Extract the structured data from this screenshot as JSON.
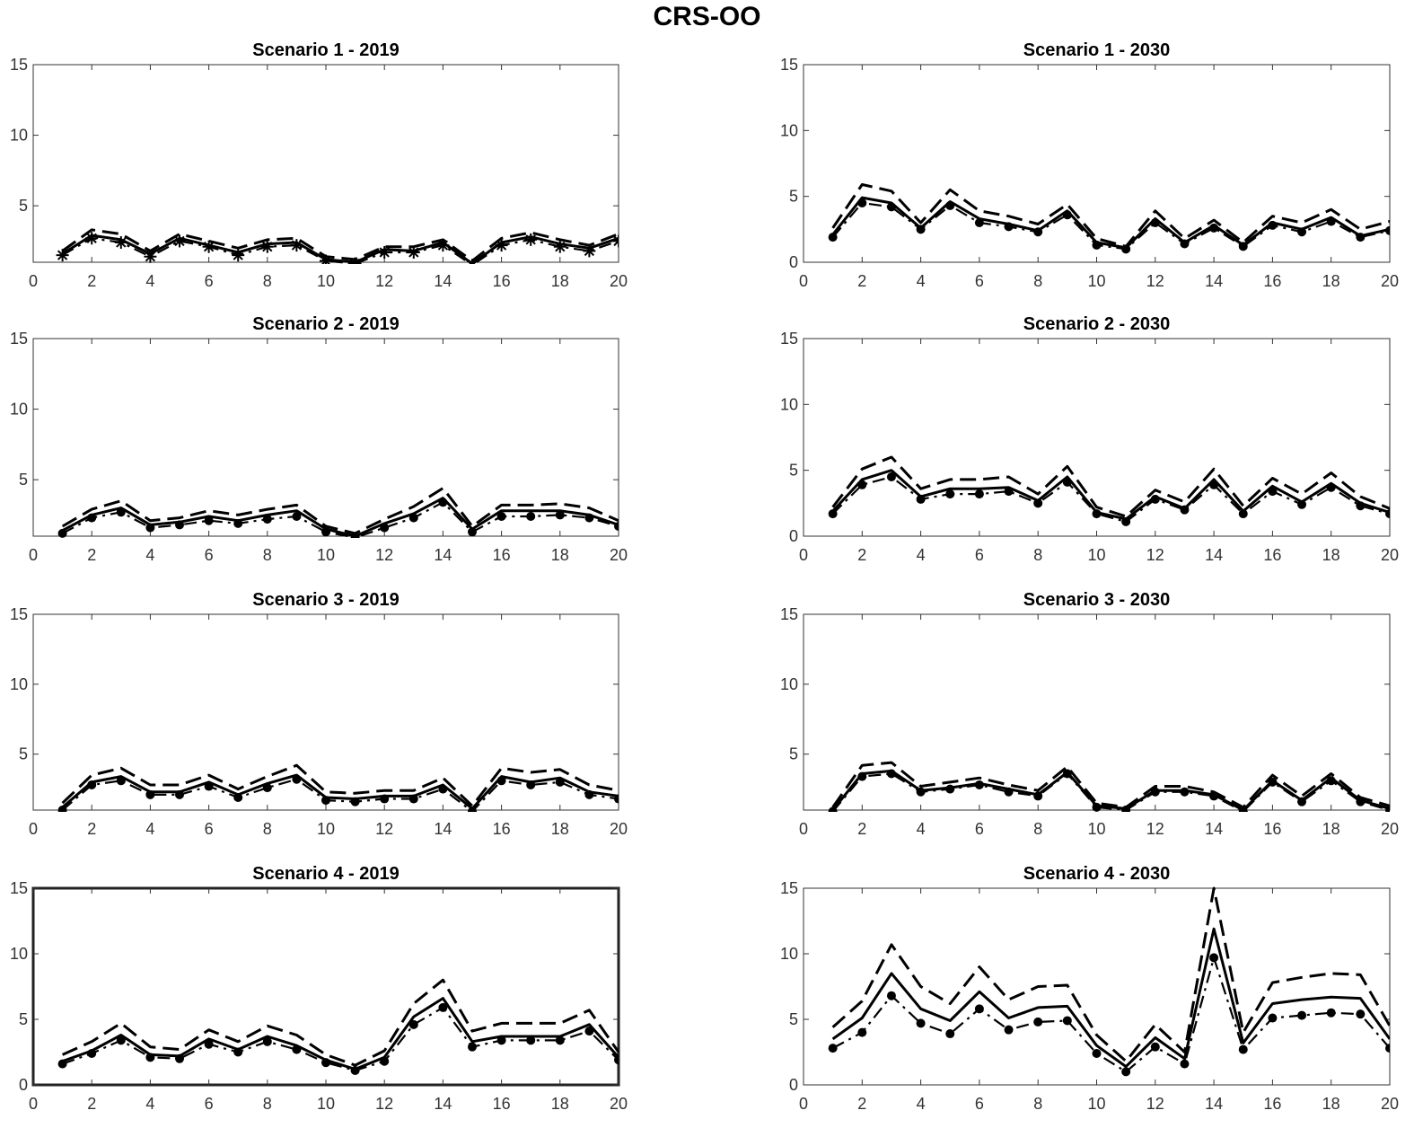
{
  "figure_title": "CRS-OO",
  "chart_data": [
    {
      "type": "line",
      "title": "Scenario 1 - 2019",
      "x": [
        1,
        2,
        3,
        4,
        5,
        6,
        7,
        8,
        9,
        10,
        11,
        12,
        13,
        14,
        15,
        16,
        17,
        18,
        19,
        20
      ],
      "xlim": [
        0,
        20
      ],
      "ylim": [
        1,
        15
      ],
      "xticks": [
        0,
        2,
        4,
        6,
        8,
        10,
        12,
        14,
        16,
        18,
        20
      ],
      "yticks": [
        5,
        10,
        15
      ],
      "xlabel": "",
      "ylabel": "",
      "series": [
        {
          "name": "upper",
          "style": "dashed",
          "marker": "none",
          "values": [
            1.8,
            3.3,
            3.0,
            1.8,
            3.0,
            2.5,
            2.0,
            2.6,
            2.7,
            1.4,
            1.2,
            2.1,
            2.1,
            2.6,
            1.1,
            2.7,
            3.1,
            2.6,
            2.2,
            3.0
          ]
        },
        {
          "name": "mid",
          "style": "solid",
          "marker": "none",
          "values": [
            1.6,
            2.9,
            2.6,
            1.6,
            2.7,
            2.2,
            1.7,
            2.3,
            2.4,
            1.2,
            1.0,
            1.9,
            1.8,
            2.4,
            0.9,
            2.4,
            2.8,
            2.3,
            2.0,
            2.7
          ]
        },
        {
          "name": "lower",
          "style": "dashdot",
          "marker": "star",
          "values": [
            1.5,
            2.7,
            2.4,
            1.4,
            2.5,
            2.1,
            1.5,
            2.1,
            2.2,
            1.1,
            0.9,
            1.7,
            1.7,
            2.2,
            0.8,
            2.2,
            2.6,
            2.1,
            1.8,
            2.5
          ]
        }
      ]
    },
    {
      "type": "line",
      "title": "Scenario 1 - 2030",
      "x": [
        1,
        2,
        3,
        4,
        5,
        6,
        7,
        8,
        9,
        10,
        11,
        12,
        13,
        14,
        15,
        16,
        17,
        18,
        19,
        20
      ],
      "xlim": [
        0,
        20
      ],
      "ylim": [
        0,
        15
      ],
      "xticks": [
        0,
        2,
        4,
        6,
        8,
        10,
        12,
        14,
        16,
        18,
        20
      ],
      "yticks": [
        0,
        5,
        10,
        15
      ],
      "xlabel": "",
      "ylabel": "",
      "series": [
        {
          "name": "upper",
          "style": "dashed",
          "marker": "none",
          "values": [
            2.6,
            5.9,
            5.4,
            3.0,
            5.5,
            3.9,
            3.5,
            2.9,
            4.4,
            1.8,
            1.2,
            3.9,
            1.8,
            3.2,
            1.5,
            3.5,
            3.0,
            4.0,
            2.5,
            3.1
          ]
        },
        {
          "name": "mid",
          "style": "solid",
          "marker": "none",
          "values": [
            2.1,
            4.9,
            4.5,
            2.6,
            4.6,
            3.3,
            2.9,
            2.4,
            3.9,
            1.5,
            1.1,
            3.3,
            1.5,
            2.8,
            1.3,
            3.0,
            2.5,
            3.4,
            2.0,
            2.5
          ]
        },
        {
          "name": "lower",
          "style": "dashdot",
          "marker": "dot",
          "values": [
            1.9,
            4.5,
            4.2,
            2.5,
            4.3,
            3.0,
            2.7,
            2.3,
            3.6,
            1.3,
            1.0,
            3.0,
            1.4,
            2.6,
            1.2,
            2.8,
            2.3,
            3.1,
            1.9,
            2.4
          ]
        }
      ]
    },
    {
      "type": "line",
      "title": "Scenario 2 - 2019",
      "x": [
        1,
        2,
        3,
        4,
        5,
        6,
        7,
        8,
        9,
        10,
        11,
        12,
        13,
        14,
        15,
        16,
        17,
        18,
        19,
        20
      ],
      "xlim": [
        0,
        20
      ],
      "ylim": [
        1,
        15
      ],
      "xticks": [
        0,
        2,
        4,
        6,
        8,
        10,
        12,
        14,
        16,
        18,
        20
      ],
      "yticks": [
        5,
        10,
        15
      ],
      "xlabel": "",
      "ylabel": "",
      "series": [
        {
          "name": "upper",
          "style": "dashed",
          "marker": "none",
          "values": [
            1.7,
            2.9,
            3.5,
            2.1,
            2.3,
            2.8,
            2.5,
            2.9,
            3.2,
            1.7,
            1.2,
            2.2,
            3.1,
            4.4,
            1.7,
            3.2,
            3.2,
            3.3,
            3.0,
            2.1
          ]
        },
        {
          "name": "mid",
          "style": "solid",
          "marker": "none",
          "values": [
            1.4,
            2.5,
            3.0,
            1.8,
            2.0,
            2.4,
            2.1,
            2.5,
            2.8,
            1.5,
            1.0,
            1.9,
            2.6,
            3.7,
            1.5,
            2.8,
            2.8,
            2.8,
            2.5,
            1.8
          ]
        },
        {
          "name": "lower",
          "style": "dashdot",
          "marker": "dot",
          "values": [
            1.2,
            2.3,
            2.7,
            1.6,
            1.8,
            2.1,
            1.9,
            2.2,
            2.4,
            1.3,
            0.9,
            1.6,
            2.3,
            3.4,
            1.3,
            2.4,
            2.4,
            2.5,
            2.3,
            1.7
          ]
        }
      ]
    },
    {
      "type": "line",
      "title": "Scenario 2 - 2030",
      "x": [
        1,
        2,
        3,
        4,
        5,
        6,
        7,
        8,
        9,
        10,
        11,
        12,
        13,
        14,
        15,
        16,
        17,
        18,
        19,
        20
      ],
      "xlim": [
        0,
        20
      ],
      "ylim": [
        0,
        15
      ],
      "xticks": [
        0,
        2,
        4,
        6,
        8,
        10,
        12,
        14,
        16,
        18,
        20
      ],
      "yticks": [
        0,
        5,
        10,
        15
      ],
      "xlabel": "",
      "ylabel": "",
      "series": [
        {
          "name": "upper",
          "style": "dashed",
          "marker": "none",
          "values": [
            2.2,
            5.1,
            6.0,
            3.6,
            4.3,
            4.3,
            4.5,
            3.2,
            5.3,
            2.2,
            1.5,
            3.5,
            2.6,
            5.1,
            2.3,
            4.4,
            3.2,
            4.8,
            3.0,
            2.1
          ]
        },
        {
          "name": "mid",
          "style": "solid",
          "marker": "none",
          "values": [
            1.9,
            4.3,
            5.0,
            3.0,
            3.6,
            3.6,
            3.7,
            2.7,
            4.5,
            1.8,
            1.3,
            3.0,
            2.1,
            4.3,
            1.9,
            3.8,
            2.6,
            4.0,
            2.5,
            1.8
          ]
        },
        {
          "name": "lower",
          "style": "dashdot",
          "marker": "dot",
          "values": [
            1.7,
            3.9,
            4.5,
            2.8,
            3.2,
            3.2,
            3.4,
            2.5,
            4.1,
            1.7,
            1.1,
            2.8,
            2.0,
            3.9,
            1.7,
            3.4,
            2.4,
            3.7,
            2.3,
            1.7
          ]
        }
      ]
    },
    {
      "type": "line",
      "title": "Scenario 3 - 2019",
      "x": [
        1,
        2,
        3,
        4,
        5,
        6,
        7,
        8,
        9,
        10,
        11,
        12,
        13,
        14,
        15,
        16,
        17,
        18,
        19,
        20
      ],
      "xlim": [
        0,
        20
      ],
      "ylim": [
        1,
        15
      ],
      "xticks": [
        0,
        2,
        4,
        6,
        8,
        10,
        12,
        14,
        16,
        18,
        20
      ],
      "yticks": [
        5,
        10,
        15
      ],
      "xlabel": "",
      "ylabel": "",
      "series": [
        {
          "name": "upper",
          "style": "dashed",
          "marker": "none",
          "values": [
            1.5,
            3.5,
            4.0,
            2.8,
            2.8,
            3.5,
            2.5,
            3.4,
            4.2,
            2.3,
            2.2,
            2.4,
            2.4,
            3.3,
            1.3,
            4.0,
            3.7,
            3.9,
            2.8,
            2.4
          ]
        },
        {
          "name": "mid",
          "style": "solid",
          "marker": "none",
          "values": [
            1.2,
            3.0,
            3.4,
            2.3,
            2.3,
            3.0,
            2.1,
            2.9,
            3.5,
            1.9,
            1.8,
            2.0,
            2.0,
            2.8,
            1.1,
            3.4,
            3.0,
            3.3,
            2.3,
            2.0
          ]
        },
        {
          "name": "lower",
          "style": "dashdot",
          "marker": "dot",
          "values": [
            1.0,
            2.8,
            3.1,
            2.1,
            2.1,
            2.7,
            1.9,
            2.6,
            3.2,
            1.7,
            1.6,
            1.8,
            1.8,
            2.5,
            0.9,
            3.1,
            2.8,
            3.0,
            2.1,
            1.8
          ]
        }
      ]
    },
    {
      "type": "line",
      "title": "Scenario 3 - 2030",
      "x": [
        1,
        2,
        3,
        4,
        5,
        6,
        7,
        8,
        9,
        10,
        11,
        12,
        13,
        14,
        15,
        16,
        17,
        18,
        19,
        20
      ],
      "xlim": [
        0,
        20
      ],
      "ylim": [
        1,
        15
      ],
      "xticks": [
        0,
        2,
        4,
        6,
        8,
        10,
        12,
        14,
        16,
        18,
        20
      ],
      "yticks": [
        5,
        10,
        15
      ],
      "xlabel": "",
      "ylabel": "",
      "series": [
        {
          "name": "upper",
          "style": "dashed",
          "marker": "none",
          "values": [
            1.2,
            4.2,
            4.4,
            2.7,
            3.0,
            3.3,
            2.8,
            2.4,
            4.1,
            1.5,
            1.2,
            2.7,
            2.7,
            2.3,
            1.2,
            3.5,
            2.0,
            3.6,
            1.9,
            1.3
          ]
        },
        {
          "name": "mid",
          "style": "solid",
          "marker": "none",
          "values": [
            1.0,
            3.6,
            3.8,
            2.4,
            2.6,
            2.9,
            2.5,
            2.1,
            3.7,
            1.3,
            1.1,
            2.4,
            2.4,
            2.1,
            1.0,
            3.1,
            1.7,
            3.3,
            1.7,
            1.1
          ]
        },
        {
          "name": "lower",
          "style": "dashdot",
          "marker": "dot",
          "values": [
            0.9,
            3.4,
            3.6,
            2.3,
            2.5,
            2.8,
            2.3,
            2.0,
            3.6,
            1.2,
            1.0,
            2.3,
            2.3,
            2.0,
            0.9,
            3.0,
            1.6,
            3.1,
            1.6,
            1.0
          ]
        }
      ]
    },
    {
      "type": "line",
      "title": "Scenario 4 - 2019",
      "x": [
        1,
        2,
        3,
        4,
        5,
        6,
        7,
        8,
        9,
        10,
        11,
        12,
        13,
        14,
        15,
        16,
        17,
        18,
        19,
        20
      ],
      "xlim": [
        0,
        20
      ],
      "ylim": [
        0,
        15
      ],
      "xticks": [
        0,
        2,
        4,
        6,
        8,
        10,
        12,
        14,
        16,
        18,
        20
      ],
      "yticks": [
        0,
        5,
        10,
        15
      ],
      "xlabel": "",
      "ylabel": "",
      "series": [
        {
          "name": "upper",
          "style": "dashed",
          "marker": "none",
          "values": [
            2.3,
            3.3,
            4.7,
            2.9,
            2.7,
            4.2,
            3.3,
            4.5,
            3.8,
            2.3,
            1.5,
            2.6,
            6.2,
            8.0,
            4.1,
            4.7,
            4.7,
            4.7,
            5.7,
            2.5
          ]
        },
        {
          "name": "mid",
          "style": "solid",
          "marker": "none",
          "values": [
            1.8,
            2.6,
            3.8,
            2.3,
            2.2,
            3.5,
            2.7,
            3.7,
            3.0,
            1.9,
            1.2,
            2.1,
            5.2,
            6.6,
            3.3,
            3.7,
            3.7,
            3.7,
            4.6,
            2.1
          ]
        },
        {
          "name": "lower",
          "style": "dashdot",
          "marker": "dot",
          "values": [
            1.6,
            2.4,
            3.4,
            2.1,
            2.0,
            3.1,
            2.5,
            3.3,
            2.7,
            1.7,
            1.1,
            1.8,
            4.6,
            5.9,
            2.9,
            3.4,
            3.4,
            3.4,
            4.1,
            1.9
          ]
        }
      ]
    },
    {
      "type": "line",
      "title": "Scenario 4 - 2030",
      "x": [
        1,
        2,
        3,
        4,
        5,
        6,
        7,
        8,
        9,
        10,
        11,
        12,
        13,
        14,
        15,
        16,
        17,
        18,
        19,
        20
      ],
      "xlim": [
        0,
        20
      ],
      "ylim": [
        0,
        15
      ],
      "xticks": [
        0,
        2,
        4,
        6,
        8,
        10,
        12,
        14,
        16,
        18,
        20
      ],
      "yticks": [
        0,
        5,
        10,
        15
      ],
      "xlabel": "",
      "ylabel": "",
      "series": [
        {
          "name": "upper",
          "style": "dashed",
          "marker": "none",
          "values": [
            4.4,
            6.4,
            10.7,
            7.5,
            6.2,
            9.0,
            6.5,
            7.5,
            7.6,
            3.8,
            1.8,
            4.6,
            2.5,
            15.0,
            4.0,
            7.8,
            8.2,
            8.5,
            8.4,
            4.5
          ]
        },
        {
          "name": "mid",
          "style": "solid",
          "marker": "none",
          "values": [
            3.5,
            5.1,
            8.5,
            5.8,
            4.9,
            7.1,
            5.1,
            5.9,
            6.0,
            3.0,
            1.4,
            3.6,
            2.0,
            11.9,
            3.2,
            6.2,
            6.5,
            6.7,
            6.6,
            3.5
          ]
        },
        {
          "name": "lower",
          "style": "dashdot",
          "marker": "dot",
          "values": [
            2.8,
            4.0,
            6.8,
            4.7,
            3.9,
            5.8,
            4.2,
            4.8,
            4.9,
            2.4,
            1.0,
            2.9,
            1.6,
            9.7,
            2.7,
            5.1,
            5.3,
            5.5,
            5.4,
            2.8
          ]
        }
      ]
    }
  ]
}
